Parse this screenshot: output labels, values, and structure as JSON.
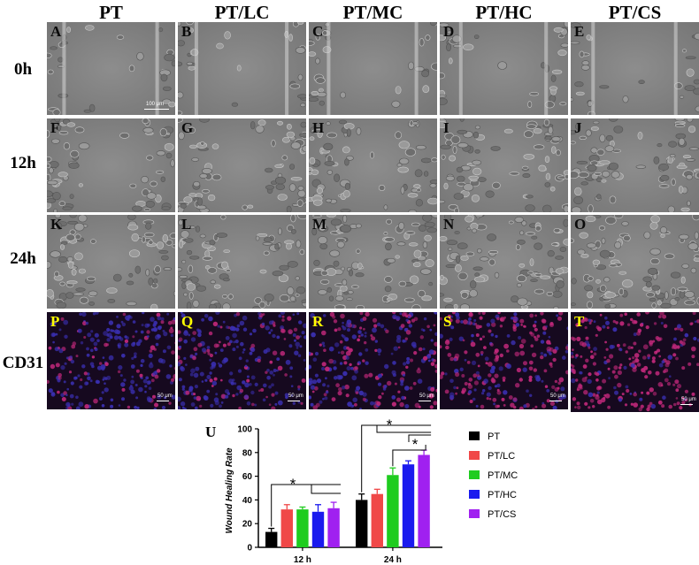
{
  "columns": [
    "PT",
    "PT/LC",
    "PT/MC",
    "PT/HC",
    "PT/CS"
  ],
  "rows": [
    "0h",
    "12h",
    "24h",
    "CD31"
  ],
  "panel_letters": [
    [
      "A",
      "B",
      "C",
      "D",
      "E"
    ],
    [
      "F",
      "G",
      "H",
      "I",
      "J"
    ],
    [
      "K",
      "L",
      "M",
      "N",
      "O"
    ],
    [
      "P",
      "Q",
      "R",
      "S",
      "T"
    ]
  ],
  "scale_bar_phase": "100 μm",
  "scale_bar_fluor": "50 μm",
  "chart_panel_letter": "U",
  "chart_data": {
    "type": "bar",
    "ylabel": "Wound Healing Rate",
    "xlabel": "",
    "categories": [
      "12 h",
      "24 h"
    ],
    "ylim": [
      0,
      100
    ],
    "yticks": [
      0,
      20,
      40,
      60,
      80,
      100
    ],
    "legend_position": "right",
    "series": [
      {
        "name": "PT",
        "color": "#000000",
        "values": [
          13,
          40
        ],
        "errors": [
          3,
          5
        ]
      },
      {
        "name": "PT/LC",
        "color": "#f04848",
        "values": [
          32,
          45
        ],
        "errors": [
          4,
          4
        ]
      },
      {
        "name": "PT/MC",
        "color": "#1fcc1f",
        "values": [
          32,
          61
        ],
        "errors": [
          2,
          6
        ]
      },
      {
        "name": "PT/HC",
        "color": "#1a1aee",
        "values": [
          30,
          70
        ],
        "errors": [
          6,
          3
        ]
      },
      {
        "name": "PT/CS",
        "color": "#a020f0",
        "values": [
          33,
          78
        ],
        "errors": [
          5,
          4
        ]
      }
    ],
    "significance_marker": "*"
  },
  "colors": {
    "phase_background": "#808080",
    "fluor_background": "#16091f",
    "panel_letter_fluor": "#ffff00"
  }
}
